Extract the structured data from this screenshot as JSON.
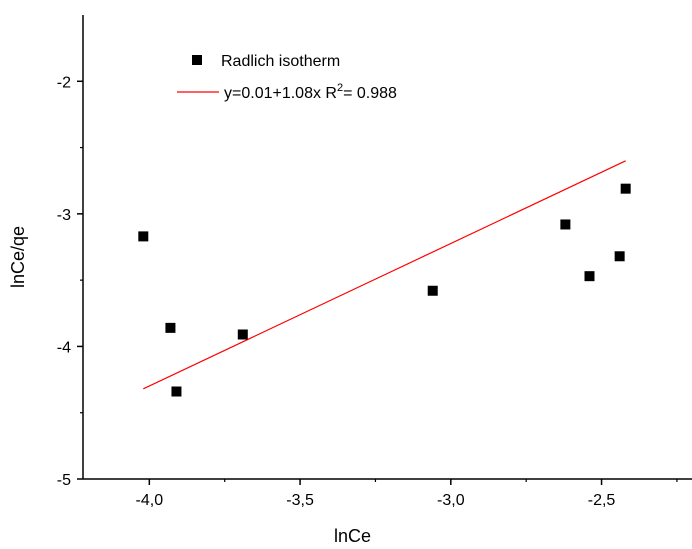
{
  "chart_data": {
    "type": "scatter",
    "xlabel": "lnCe",
    "ylabel": "lnCe/qe",
    "xlim": [
      -4.22,
      -2.2
    ],
    "ylim": [
      -5.0,
      -1.5
    ],
    "xticks": [
      -4.0,
      -3.5,
      -3.0,
      -2.5
    ],
    "xtick_labels": [
      "-4,0",
      "-3,5",
      "-3,0",
      "-2,5"
    ],
    "yticks": [
      -5,
      -4,
      -3,
      -2
    ],
    "ytick_labels": [
      "-5",
      "-4",
      "-3",
      "-2"
    ],
    "grid": false,
    "legend_position": "top-left",
    "series": [
      {
        "name": "Radlich isotherm",
        "marker": "square",
        "color": "#000000",
        "x": [
          -4.02,
          -3.93,
          -3.91,
          -3.69,
          -3.06,
          -2.62,
          -2.54,
          -2.44,
          -2.42
        ],
        "y": [
          -3.17,
          -3.86,
          -4.34,
          -3.91,
          -3.58,
          -3.08,
          -3.47,
          -3.32,
          -2.81
        ]
      },
      {
        "name": "y=0.01+1.08x R²= 0.988",
        "type": "line",
        "color": "#ff0000",
        "x": [
          -4.02,
          -2.42
        ],
        "y": [
          -4.32,
          -2.6
        ]
      }
    ],
    "legend": {
      "entries": [
        {
          "text": "Radlich isotherm",
          "symbol": "square",
          "color": "#000000"
        },
        {
          "text_main": "y=0.01+1.08x R",
          "superscript": "2",
          "text_tail": "= 0.988",
          "symbol": "line",
          "color": "#ff0000"
        }
      ]
    }
  }
}
